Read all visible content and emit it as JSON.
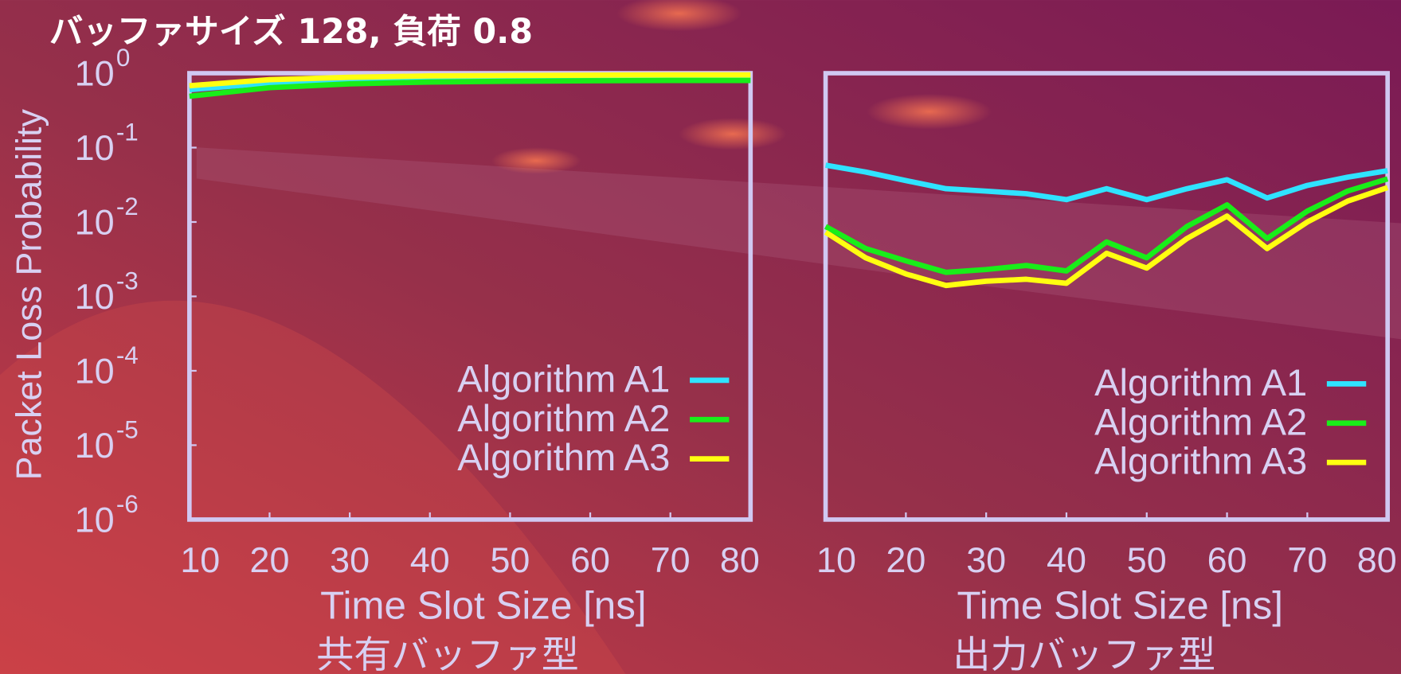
{
  "title": "バッファサイズ 128, 負荷 0.8",
  "chart_data": [
    {
      "type": "line",
      "log_y": true,
      "ylabel": "Packet Loss Probability",
      "xlabel": "Time Slot Size [ns]",
      "caption": "共有バッファ型",
      "xlim": [
        10,
        80
      ],
      "xticks": [
        10,
        20,
        30,
        40,
        50,
        60,
        70,
        80
      ],
      "ylim": [
        1e-06,
        1
      ],
      "yticks": [
        {
          "value": 1,
          "label": "10",
          "exponent": "0"
        },
        {
          "value": 0.1,
          "label": "10",
          "exponent": "-1"
        },
        {
          "value": 0.01,
          "label": "10",
          "exponent": "-2"
        },
        {
          "value": 0.001,
          "label": "10",
          "exponent": "-3"
        },
        {
          "value": 0.0001,
          "label": "10",
          "exponent": "-4"
        },
        {
          "value": 1e-05,
          "label": "10",
          "exponent": "-5"
        },
        {
          "value": 1e-06,
          "label": "10",
          "exponent": "-6"
        }
      ],
      "legend": "lower right",
      "x": [
        10,
        20,
        30,
        40,
        50,
        60,
        70,
        80
      ],
      "series": [
        {
          "name": "Algorithm A1",
          "color": "#2fe3ff",
          "values": [
            0.6,
            0.74,
            0.8,
            0.82,
            0.83,
            0.84,
            0.84,
            0.84
          ]
        },
        {
          "name": "Algorithm A2",
          "color": "#19ee19",
          "values": [
            0.49,
            0.64,
            0.72,
            0.76,
            0.78,
            0.79,
            0.8,
            0.8
          ]
        },
        {
          "name": "Algorithm A3",
          "color": "#ffff10",
          "values": [
            0.68,
            0.82,
            0.88,
            0.92,
            0.93,
            0.94,
            0.95,
            0.95
          ]
        }
      ]
    },
    {
      "type": "line",
      "log_y": true,
      "xlabel": "Time Slot Size [ns]",
      "caption": "出力バッファ型",
      "xlim": [
        10,
        80
      ],
      "xticks": [
        10,
        20,
        30,
        40,
        50,
        60,
        70,
        80
      ],
      "ylim": [
        1e-06,
        1
      ],
      "legend": "lower right",
      "x": [
        10,
        15,
        20,
        25,
        30,
        35,
        40,
        45,
        50,
        55,
        60,
        65,
        70,
        75,
        80
      ],
      "series": [
        {
          "name": "Algorithm A1",
          "color": "#2fe3ff",
          "values": [
            0.058,
            0.047,
            0.036,
            0.028,
            0.026,
            0.024,
            0.02,
            0.028,
            0.02,
            0.028,
            0.037,
            0.021,
            0.031,
            0.04,
            0.049
          ]
        },
        {
          "name": "Algorithm A2",
          "color": "#19ee19",
          "values": [
            0.0087,
            0.0044,
            0.003,
            0.0021,
            0.0023,
            0.0026,
            0.0022,
            0.0054,
            0.0033,
            0.0087,
            0.017,
            0.006,
            0.014,
            0.026,
            0.038
          ]
        },
        {
          "name": "Algorithm A3",
          "color": "#ffff10",
          "values": [
            0.0073,
            0.0033,
            0.002,
            0.0014,
            0.0016,
            0.0017,
            0.0015,
            0.0038,
            0.0024,
            0.006,
            0.012,
            0.0044,
            0.01,
            0.019,
            0.029
          ]
        }
      ]
    }
  ]
}
